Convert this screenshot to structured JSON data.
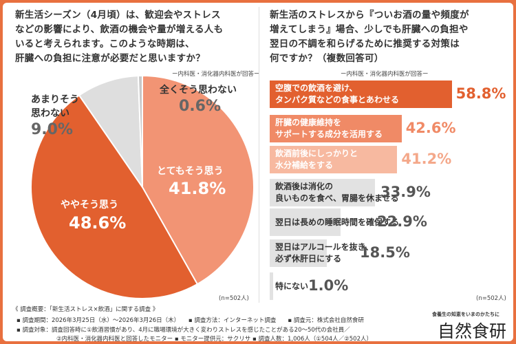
{
  "left": {
    "question": [
      "新生活シーズン（4月頃）は、歓迎会やストレス",
      "などの影響により、飲酒の機会や量が増える人も",
      "いると考えられます。このような時期は、",
      "肝臓への負担に注意が必要だと思いますか？"
    ],
    "respondent": "ー内科医・消化器内科医が回答ー",
    "n": "(n=502人)"
  },
  "right": {
    "question": [
      "新生活のストレスから『ついお酒の量や頻度が",
      "増えてしまう』場合、少しでも肝臓への負担や",
      "翌日の不調を和らげるために推奨する対策は",
      "何ですか？（複数回答可）"
    ],
    "respondent": "ー内科医・消化器内科医が回答ー",
    "n": "(n=502人)"
  },
  "chart_data": [
    {
      "type": "pie",
      "slices": [
        {
          "label": "とてもそう思う",
          "value": 41.8,
          "display": "41.8%",
          "color": "#f29474"
        },
        {
          "label": "ややそう思う",
          "value": 48.6,
          "display": "48.6%",
          "color": "#e2602f"
        },
        {
          "label": "あまりそう思わない",
          "value": 9.0,
          "display": "9.0%",
          "color": "#dedede"
        },
        {
          "label": "全くそう思わない",
          "value": 0.6,
          "display": "0.6%",
          "color": "#c8c8c8"
        }
      ]
    },
    {
      "type": "bar",
      "orientation": "horizontal",
      "xlim": [
        0,
        100
      ],
      "bars": [
        {
          "label": [
            "空腹での飲酒を避け、",
            "タンパク質などの食事とあわせる"
          ],
          "value": 58.8,
          "display": "58.8%",
          "color": "#e2602f",
          "text_color": "#fff"
        },
        {
          "label": [
            "肝臓の健康維持を",
            "サポートする成分を活用する"
          ],
          "value": 42.6,
          "display": "42.6%",
          "color": "#f08a66",
          "text_color": "#fff"
        },
        {
          "label": [
            "飲酒前後にしっかりと",
            "水分補給をする"
          ],
          "value": 41.2,
          "display": "41.2%",
          "color": "#f7b9a0",
          "text_color": "#fff"
        },
        {
          "label": [
            "飲酒後は消化の",
            "良いものを食べ、胃腸を休ませる"
          ],
          "value": 33.9,
          "display": "33.9%",
          "color": "#e2e2e2",
          "text_color": "#333"
        },
        {
          "label": [
            "翌日は長めの睡眠時間を確保する"
          ],
          "value": 22.9,
          "display": "22.9%",
          "color": "#e2e2e2",
          "text_color": "#333"
        },
        {
          "label": [
            "翌日はアルコールを抜き、",
            "必ず休肝日にする"
          ],
          "value": 18.5,
          "display": "18.5%",
          "color": "#e2e2e2",
          "text_color": "#333"
        },
        {
          "label": [
            "特にない"
          ],
          "value": 1.0,
          "display": "1.0%",
          "color": "#e2e2e2",
          "text_color": "#333"
        }
      ]
    }
  ],
  "footer": {
    "lines": [
      "《 調査概要：「新生活ストレス×飲酒」に関する調査 》",
      "▪ 調査期間：2026年3月25日（水）～2026年3月26日（木）　　▪ 調査方法：インターネット調査　　▪ 調査元：株式会社自然食研",
      "▪ 調査対象：調査回答時に①飲酒習慣があり、4月に職場環境が大きく変わりストレスを感じたことがある20～50代の会社員／",
      "②内科医・消化器内科医と回答したモニター ▪ モニター提供元：サクリサ ▪ 調査人数：1,006人（①504人／②502人）"
    ],
    "tagline": "食養生の知恵をいまのかたちに",
    "logo": "自然食研"
  }
}
